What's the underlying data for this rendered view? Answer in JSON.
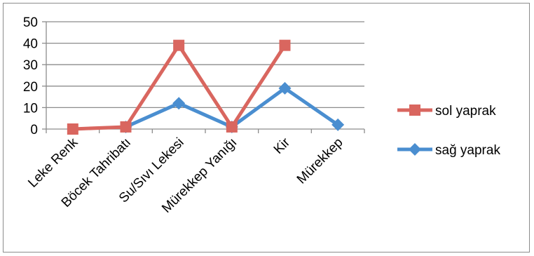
{
  "chart_data": {
    "type": "line",
    "categories": [
      "Leke Renk",
      "Böcek Tahribatı",
      "Su/Sıvı Lekesi",
      "Mürekkep Yanığı",
      "Kir",
      "Mürekkep"
    ],
    "series": [
      {
        "name": "sol yaprak",
        "values": [
          0,
          1,
          39,
          1,
          39,
          null
        ],
        "color": "#d9665f",
        "marker": "square"
      },
      {
        "name": "sağ yaprak",
        "values": [
          null,
          1,
          12,
          1,
          19,
          2
        ],
        "color": "#4a8ed0",
        "marker": "diamond"
      }
    ],
    "ylim": [
      0,
      50
    ],
    "yticks": [
      0,
      10,
      20,
      30,
      40,
      50
    ],
    "grid": true,
    "legend": "right",
    "title": "",
    "xlabel": "",
    "ylabel": ""
  }
}
